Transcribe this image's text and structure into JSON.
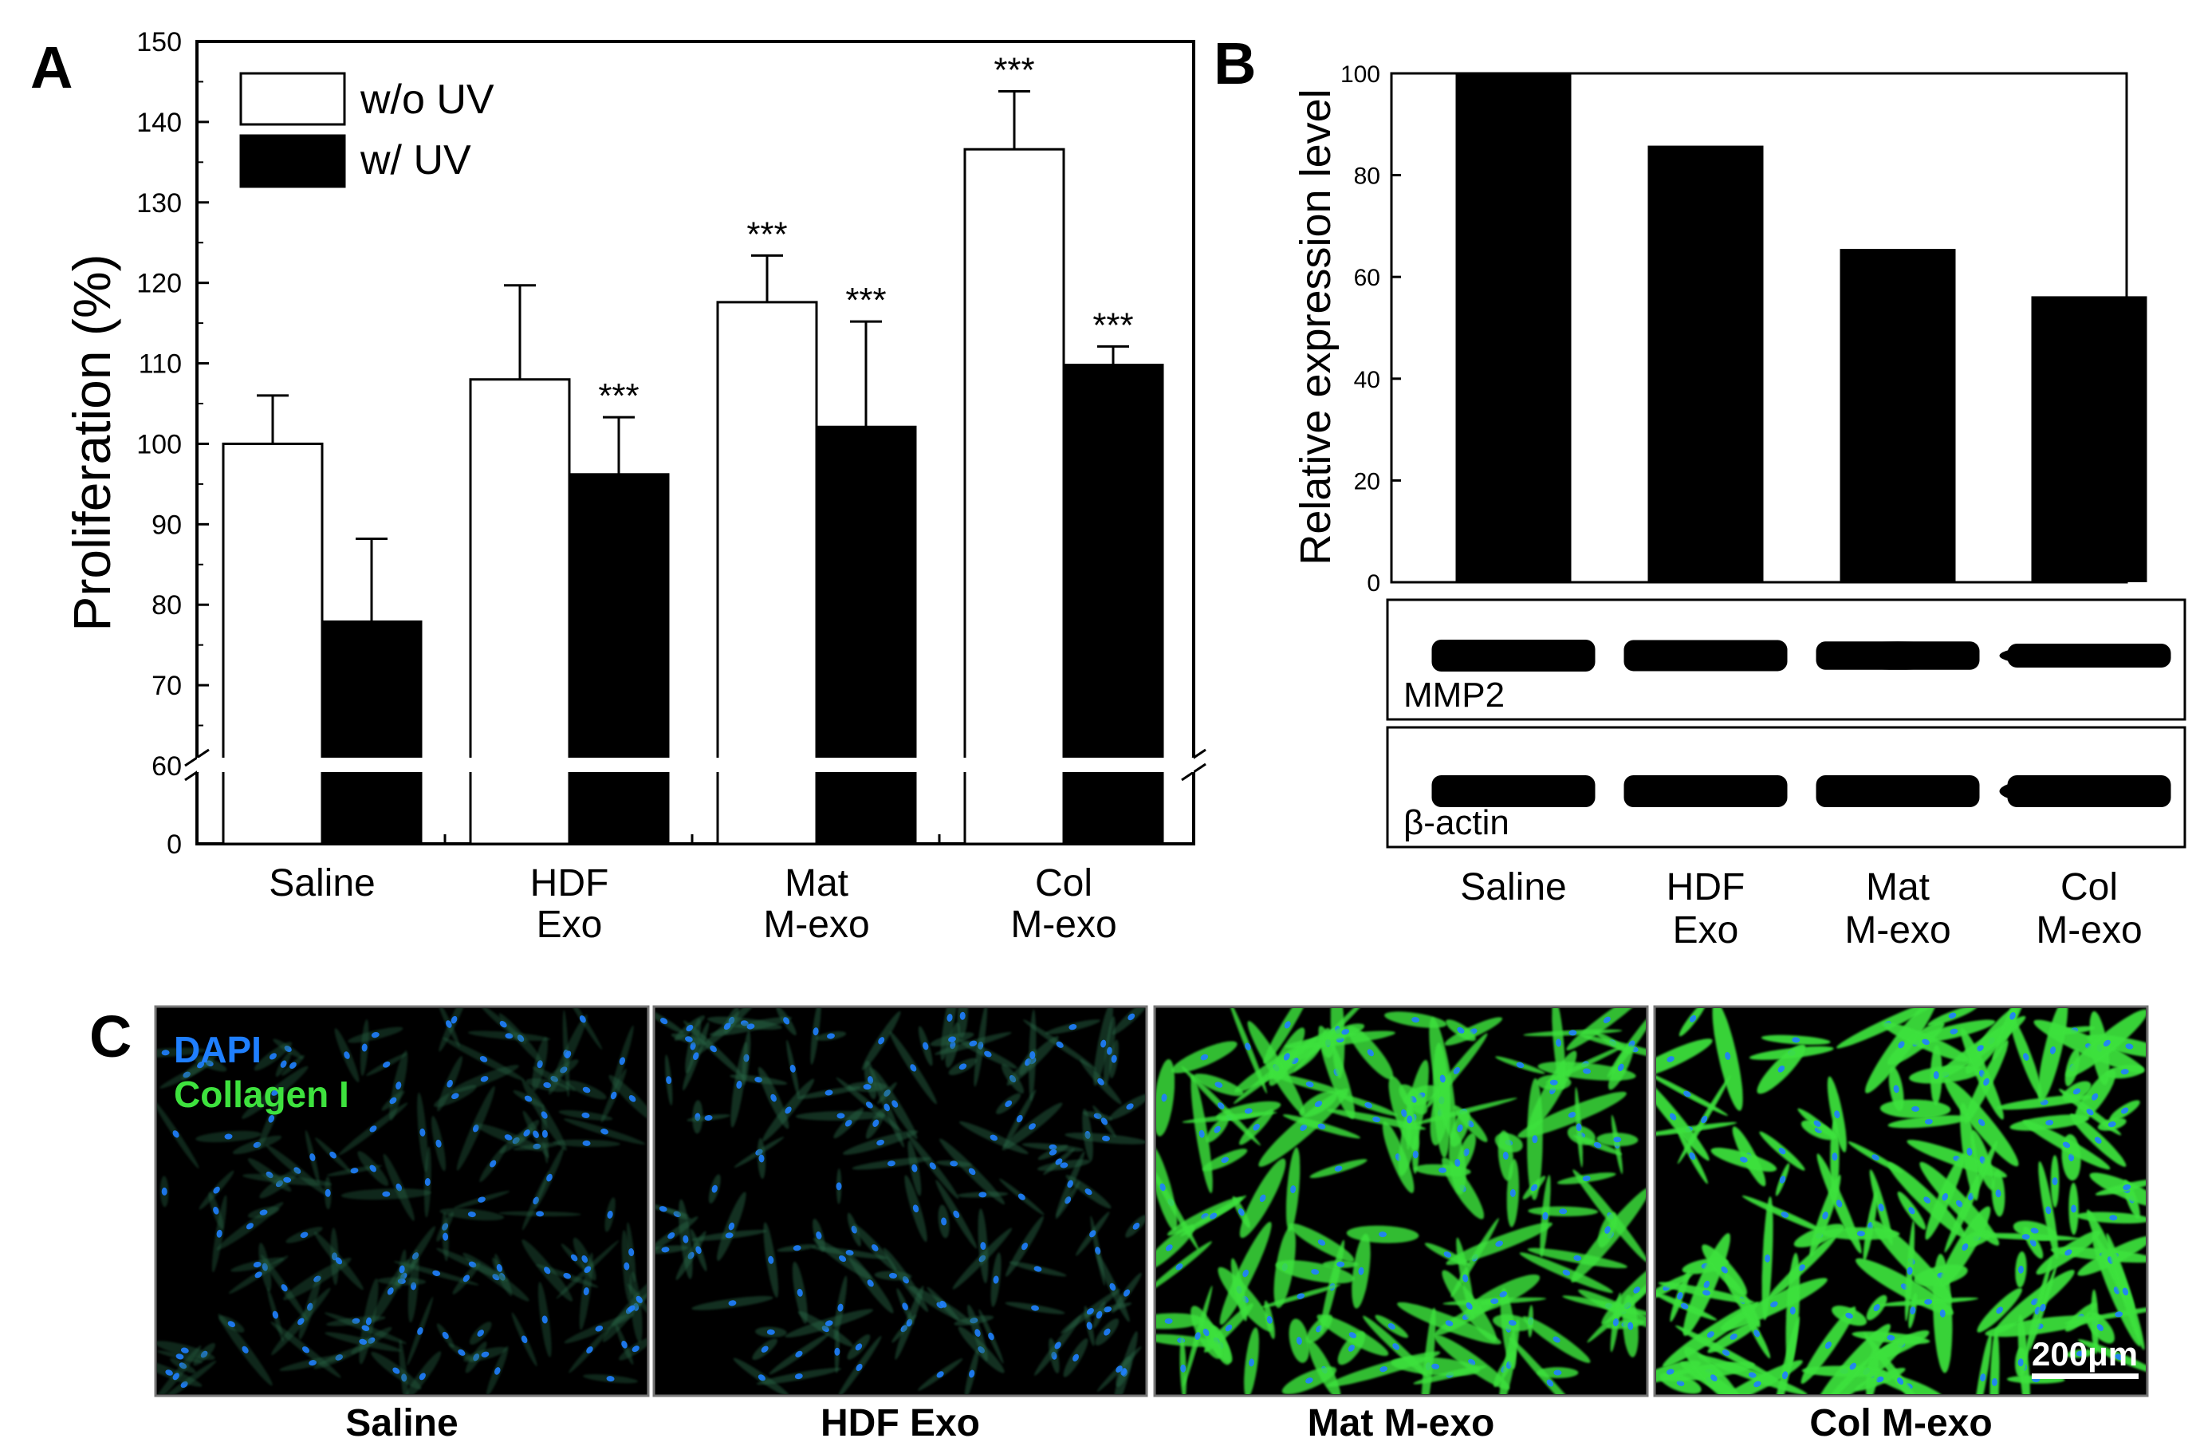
{
  "chart_data": [
    {
      "panel": "A",
      "type": "bar",
      "categories": [
        [
          "Saline"
        ],
        [
          "HDF",
          "Exo"
        ],
        [
          "Mat",
          "M-exo"
        ],
        [
          "Col",
          "M-exo"
        ]
      ],
      "ylabel": "Proliferation (%)",
      "ylim": [
        0,
        150
      ],
      "axis_break": [
        0,
        60
      ],
      "yticks": [
        0,
        60,
        70,
        80,
        90,
        100,
        110,
        120,
        130,
        140,
        150
      ],
      "legend": {
        "placement": "top-left"
      },
      "series": [
        {
          "name": "w/o UV",
          "color": "#ffffff",
          "values": [
            100,
            108,
            117.6,
            136.6
          ],
          "errors": [
            6,
            11.7,
            5.8,
            7.2
          ],
          "significance": [
            "",
            "",
            "***",
            "***"
          ]
        },
        {
          "name": "w/ UV",
          "color": "#000000",
          "values": [
            77.9,
            96.2,
            102.1,
            109.8
          ],
          "errors": [
            10.3,
            7.1,
            13.1,
            2.3
          ],
          "significance": [
            "",
            "***",
            "***",
            "***"
          ]
        }
      ]
    },
    {
      "panel": "B",
      "type": "bar",
      "categories": [
        [
          "Saline"
        ],
        [
          "HDF",
          "Exo"
        ],
        [
          "Mat",
          "M-exo"
        ],
        [
          "Col",
          "M-exo"
        ]
      ],
      "ylabel": "Relative expression level",
      "ylim": [
        0,
        100
      ],
      "yticks": [
        0,
        20,
        40,
        60,
        80,
        100
      ],
      "values": [
        100,
        85.8,
        65.5,
        56.2
      ],
      "blots": [
        {
          "label": "MMP2",
          "intensity": [
            1.0,
            0.95,
            0.8,
            0.55
          ]
        },
        {
          "label": "β-actin",
          "intensity": [
            1.0,
            1.0,
            1.0,
            1.0
          ]
        }
      ]
    }
  ],
  "panel_labels": {
    "a": "A",
    "b": "B",
    "c": "C"
  },
  "panel_c": {
    "legend_dapi": "DAPI",
    "legend_collagen": "Collagen I",
    "dapi_color": "#1f7fff",
    "collagen_color": "#3ee23e",
    "scale_bar": "200μm",
    "images": [
      {
        "label": "Saline",
        "collagen_level": 0.12
      },
      {
        "label": "HDF Exo",
        "collagen_level": 0.2
      },
      {
        "label": "Mat M-exo",
        "collagen_level": 0.7
      },
      {
        "label": "Col M-exo",
        "collagen_level": 0.95
      }
    ]
  }
}
